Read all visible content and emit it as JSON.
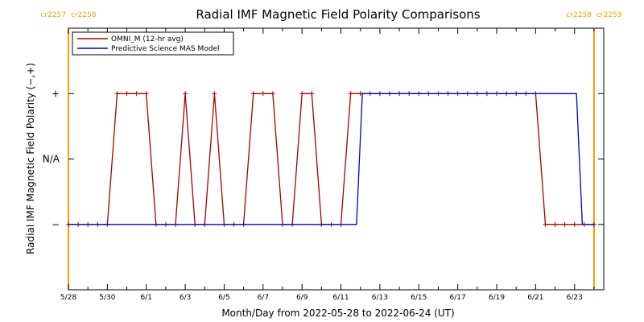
{
  "chart_data": {
    "type": "line",
    "title": "Radial IMF Magnetic Field Polarity Comparisons",
    "xlabel": "Month/Day from 2022-05-28 to 2022-06-24 (UT)",
    "ylabel": "Radial IMF Magnetic Field Polarity (−,+)",
    "x_unit": "days",
    "xlim": [
      0,
      27.5
    ],
    "ylim": [
      -1.0,
      1.0
    ],
    "y_ticks": [
      {
        "value": -0.5,
        "label": "−"
      },
      {
        "value": 0,
        "label": "N/A"
      },
      {
        "value": 0.5,
        "label": "+"
      }
    ],
    "x_ticks": [
      {
        "day": 0,
        "label": "5/28"
      },
      {
        "day": 2,
        "label": "5/30"
      },
      {
        "day": 4,
        "label": "6/1"
      },
      {
        "day": 6,
        "label": "6/3"
      },
      {
        "day": 8,
        "label": "6/5"
      },
      {
        "day": 10,
        "label": "6/7"
      },
      {
        "day": 12,
        "label": "6/9"
      },
      {
        "day": 14,
        "label": "6/11"
      },
      {
        "day": 16,
        "label": "6/13"
      },
      {
        "day": 18,
        "label": "6/15"
      },
      {
        "day": 20,
        "label": "6/17"
      },
      {
        "day": 22,
        "label": "6/19"
      },
      {
        "day": 24,
        "label": "6/21"
      },
      {
        "day": 26,
        "label": "6/23"
      }
    ],
    "carrington": [
      {
        "day": 0.0,
        "left_label": "cr2257",
        "right_label": "cr2258",
        "color": "#ff9900"
      },
      {
        "day": 27.0,
        "left_label": "cr2258",
        "right_label": "cr2259",
        "color": "#ff9900"
      }
    ],
    "legend": {
      "position": "top-left"
    },
    "series": [
      {
        "name": "OMNI_M (12-hr avg)",
        "color": "#aa0000",
        "markers": true,
        "x": [
          0.0,
          0.5,
          1.0,
          1.5,
          2.0,
          2.5,
          3.0,
          3.5,
          4.0,
          4.5,
          5.0,
          5.5,
          6.0,
          6.5,
          7.0,
          7.5,
          8.0,
          8.5,
          9.0,
          9.5,
          10.0,
          10.5,
          11.0,
          11.5,
          12.0,
          12.5,
          13.0,
          13.5,
          14.0,
          14.5,
          15.0,
          15.5,
          16.0,
          16.5,
          17.0,
          17.5,
          18.0,
          18.5,
          19.0,
          19.5,
          20.0,
          20.5,
          21.0,
          21.5,
          22.0,
          22.5,
          23.0,
          23.5,
          24.0,
          24.5,
          25.0,
          25.5,
          26.0,
          26.5,
          27.0
        ],
        "values": [
          -0.5,
          -0.5,
          -0.5,
          -0.5,
          -0.5,
          0.5,
          0.5,
          0.5,
          0.5,
          -0.5,
          -0.5,
          -0.5,
          0.5,
          -0.5,
          -0.5,
          0.5,
          -0.5,
          -0.5,
          -0.5,
          0.5,
          0.5,
          0.5,
          -0.5,
          -0.5,
          0.5,
          0.5,
          -0.5,
          -0.5,
          -0.5,
          0.5,
          0.5,
          0.5,
          0.5,
          0.5,
          0.5,
          0.5,
          0.5,
          0.5,
          0.5,
          0.5,
          0.5,
          0.5,
          0.5,
          0.5,
          0.5,
          0.5,
          0.5,
          0.5,
          0.5,
          -0.5,
          -0.5,
          -0.5,
          -0.5,
          -0.5,
          -0.5
        ]
      },
      {
        "name": "Predictive Science MAS Model",
        "color": "#0000cc",
        "markers": false,
        "x": [
          0.0,
          14.8,
          15.1,
          26.1,
          26.4,
          27.0
        ],
        "values": [
          -0.5,
          -0.5,
          0.5,
          0.5,
          -0.5,
          -0.5
        ]
      }
    ]
  }
}
